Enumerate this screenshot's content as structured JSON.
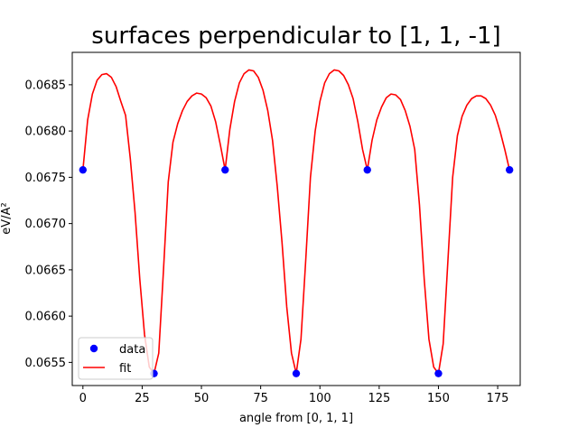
{
  "chart_data": {
    "type": "scatter",
    "title": "surfaces perpendicular to [1, 1, -1]",
    "xlabel": "angle from [0, 1, 1]",
    "ylabel": "eV/A²",
    "xlim": [
      -4.5,
      184.5
    ],
    "ylim": [
      0.06525,
      0.06885
    ],
    "xticks": [
      0,
      25,
      50,
      75,
      100,
      125,
      150,
      175
    ],
    "xtick_labels": [
      "0",
      "25",
      "50",
      "75",
      "100",
      "125",
      "150",
      "175"
    ],
    "yticks": [
      0.0655,
      0.066,
      0.0665,
      0.067,
      0.0675,
      0.068,
      0.0685
    ],
    "ytick_labels": [
      "0.0655",
      "0.0660",
      "0.0665",
      "0.0670",
      "0.0675",
      "0.0680",
      "0.0685"
    ],
    "grid": false,
    "legend": {
      "position": "lower-left",
      "entries": [
        "data",
        "fit"
      ]
    },
    "colors": {
      "data": "#0000ff",
      "fit": "#ff0000"
    },
    "series": [
      {
        "name": "data",
        "kind": "scatter",
        "x": [
          0,
          30,
          60,
          90,
          120,
          150,
          180
        ],
        "y": [
          0.06758,
          0.06538,
          0.06758,
          0.06538,
          0.06758,
          0.06538,
          0.06758
        ]
      },
      {
        "name": "fit",
        "kind": "line",
        "x": [
          0,
          2,
          4,
          6,
          8,
          10,
          12,
          14,
          16,
          18,
          20,
          22,
          24,
          26,
          28,
          30,
          32,
          34,
          36,
          38,
          40,
          42,
          44,
          46,
          48,
          50,
          52,
          54,
          56,
          58,
          60,
          62,
          64,
          66,
          68,
          70,
          72,
          74,
          76,
          78,
          80,
          82,
          84,
          86,
          88,
          90,
          92,
          94,
          96,
          98,
          100,
          102,
          104,
          106,
          108,
          110,
          112,
          114,
          116,
          118,
          120,
          122,
          124,
          126,
          128,
          130,
          132,
          134,
          136,
          138,
          140,
          142,
          144,
          146,
          148,
          150,
          152,
          154,
          156,
          158,
          160,
          162,
          164,
          166,
          168,
          170,
          172,
          174,
          176,
          178,
          180
        ],
        "y": [
          0.06758,
          0.06812,
          0.0684,
          0.06855,
          0.06861,
          0.06862,
          0.06858,
          0.06848,
          0.06832,
          0.06817,
          0.0677,
          0.06712,
          0.0664,
          0.0658,
          0.06545,
          0.06538,
          0.0656,
          0.0665,
          0.06745,
          0.06788,
          0.06808,
          0.06822,
          0.06832,
          0.06838,
          0.06841,
          0.0684,
          0.06836,
          0.06827,
          0.0681,
          0.06785,
          0.06758,
          0.06802,
          0.06832,
          0.06852,
          0.06862,
          0.06866,
          0.06865,
          0.06858,
          0.06844,
          0.06822,
          0.0679,
          0.0674,
          0.0668,
          0.0661,
          0.0656,
          0.06538,
          0.06575,
          0.0666,
          0.0675,
          0.068,
          0.06832,
          0.06852,
          0.06862,
          0.06866,
          0.06865,
          0.0686,
          0.0685,
          0.06835,
          0.0681,
          0.0678,
          0.06758,
          0.0679,
          0.06812,
          0.06826,
          0.06836,
          0.0684,
          0.06839,
          0.06834,
          0.06822,
          0.06805,
          0.0678,
          0.0672,
          0.0664,
          0.06575,
          0.06545,
          0.06538,
          0.0657,
          0.0666,
          0.0675,
          0.06795,
          0.06816,
          0.06828,
          0.06835,
          0.06838,
          0.06838,
          0.06835,
          0.06828,
          0.06817,
          0.068,
          0.0678,
          0.06758
        ]
      }
    ]
  }
}
